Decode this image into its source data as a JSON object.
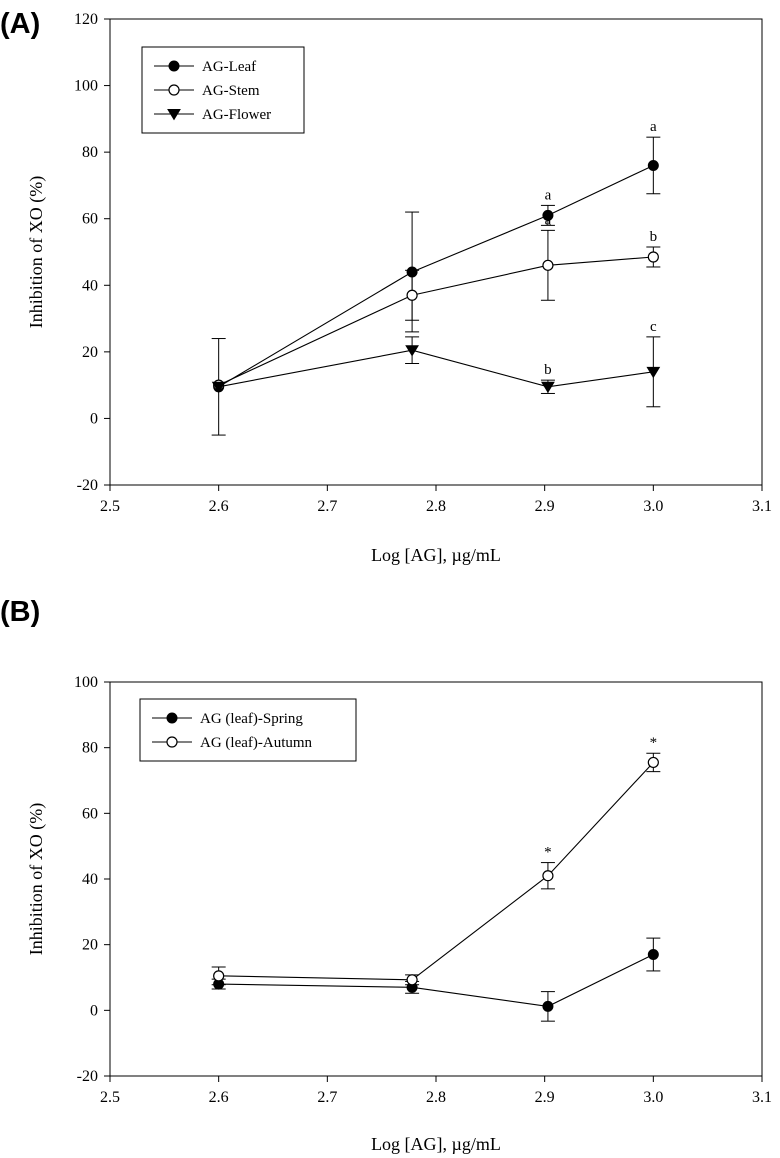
{
  "chart_data": [
    {
      "type": "line",
      "panel_label": "(A)",
      "xlabel": "Log [AG], µg/mL",
      "ylabel": "Inhibition of XO (%)",
      "xlim": [
        2.5,
        3.1
      ],
      "ylim": [
        -20,
        120
      ],
      "xticks": [
        "2.5",
        "2.6",
        "2.7",
        "2.8",
        "2.9",
        "3.0",
        "3.1"
      ],
      "yticks": [
        "-20",
        "0",
        "20",
        "40",
        "60",
        "80",
        "100",
        "120"
      ],
      "legend": "top-left",
      "series": [
        {
          "name": "AG-Leaf",
          "marker": "filled-circle",
          "x": [
            2.6,
            2.778,
            2.903,
            3.0
          ],
          "y": [
            9.5,
            44,
            61,
            76
          ],
          "err": [
            14.5,
            18,
            3,
            8.5
          ],
          "labels": [
            "",
            "",
            "a",
            "a"
          ]
        },
        {
          "name": "AG-Stem",
          "marker": "open-circle",
          "x": [
            2.6,
            2.778,
            2.903,
            3.0
          ],
          "y": [
            10,
            37,
            46,
            48.5
          ],
          "err": [
            0,
            7.5,
            10.5,
            3
          ],
          "labels": [
            "",
            "",
            "a",
            "b"
          ]
        },
        {
          "name": "AG-Flower",
          "marker": "filled-triangle-down",
          "x": [
            2.6,
            2.778,
            2.903,
            3.0
          ],
          "y": [
            9.5,
            20.5,
            9.5,
            14
          ],
          "err": [
            0,
            4,
            2,
            10.5
          ],
          "labels": [
            "",
            "",
            "b",
            "c"
          ]
        }
      ]
    },
    {
      "type": "line",
      "panel_label": "(B)",
      "xlabel": "Log [AG], µg/mL",
      "ylabel": "Inhibition of XO (%)",
      "xlim": [
        2.5,
        3.1
      ],
      "ylim": [
        -20,
        100
      ],
      "xticks": [
        "2.5",
        "2.6",
        "2.7",
        "2.8",
        "2.9",
        "3.0",
        "3.1"
      ],
      "yticks": [
        "-20",
        "0",
        "20",
        "40",
        "60",
        "80",
        "100"
      ],
      "legend": "top-left",
      "series": [
        {
          "name": "AG (leaf)-Spring",
          "marker": "filled-circle",
          "x": [
            2.6,
            2.778,
            2.903,
            3.0
          ],
          "y": [
            8,
            7,
            1.2,
            17
          ],
          "err": [
            1.5,
            1.8,
            4.5,
            5
          ],
          "labels": [
            "",
            "",
            "",
            ""
          ]
        },
        {
          "name": "AG (leaf)-Autumn",
          "marker": "open-circle",
          "x": [
            2.6,
            2.778,
            2.903,
            3.0
          ],
          "y": [
            10.5,
            9.3,
            41,
            75.5
          ],
          "err": [
            2.7,
            1.5,
            4,
            2.8
          ],
          "labels": [
            "",
            "",
            "*",
            "*"
          ]
        }
      ]
    }
  ]
}
